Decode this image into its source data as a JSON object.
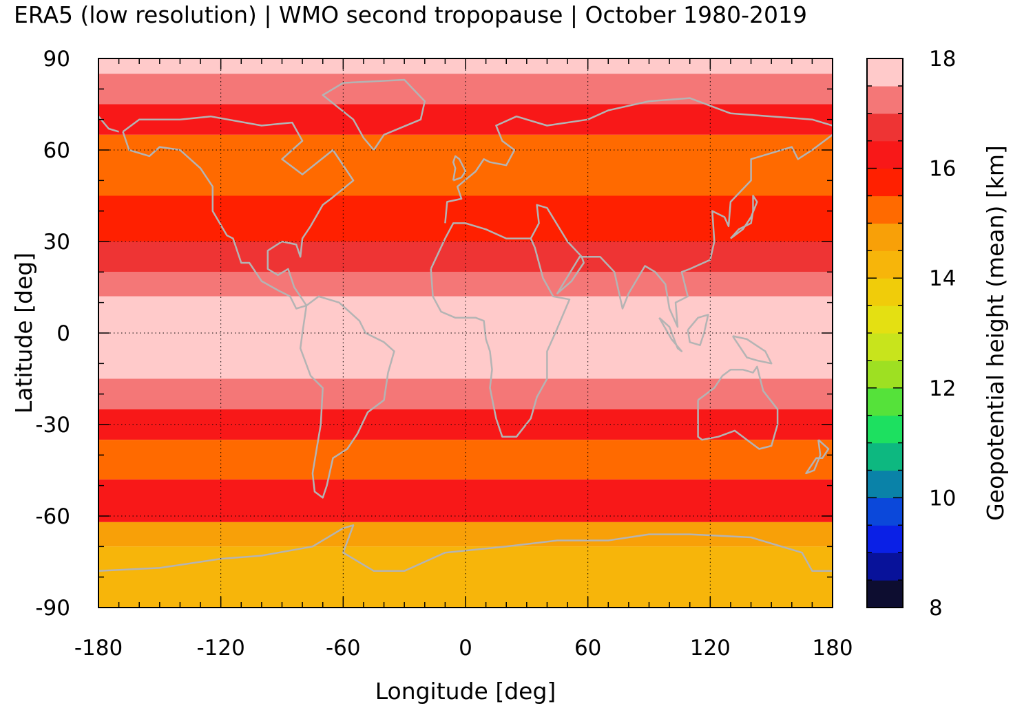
{
  "chart_data": {
    "type": "heatmap",
    "title": "ERA5 (low resolution) | WMO second tropopause | October 1980-2019",
    "xlabel": "Longitude [deg]",
    "ylabel": "Latitude [deg]",
    "colorbar_label": "Geopotential height (mean) [km]",
    "xlim": [
      -180,
      180
    ],
    "ylim": [
      -90,
      90
    ],
    "x_ticks": [
      "-180",
      "-120",
      "-60",
      "0",
      "60",
      "120",
      "180"
    ],
    "y_ticks": [
      "90",
      "60",
      "30",
      "0",
      "-30",
      "-60",
      "-90"
    ],
    "colorbar_range": [
      8,
      18
    ],
    "colorbar_ticks": [
      "18",
      "16",
      "14",
      "12",
      "10",
      "8"
    ],
    "colorbar_colors": [
      "#0d0d30",
      "#08129a",
      "#0a20e6",
      "#0b48da",
      "#0a82a8",
      "#0db880",
      "#1de060",
      "#55e23a",
      "#9ee022",
      "#c8e41c",
      "#e4e012",
      "#f0cc0a",
      "#f7b50a",
      "#f8a008",
      "#ff6a00",
      "#ff2000",
      "#f81818",
      "#ee3434",
      "#f47777",
      "#ffcaca"
    ],
    "grid": true,
    "coastlines": true,
    "approx_zonal_profile": [
      {
        "lat": [
          85,
          90
        ],
        "value": 17.6
      },
      {
        "lat": [
          75,
          85
        ],
        "value": 17.0
      },
      {
        "lat": [
          65,
          75
        ],
        "value": 16.4
      },
      {
        "lat": [
          45,
          65
        ],
        "value": 15.3
      },
      {
        "lat": [
          30,
          45
        ],
        "value": 15.9
      },
      {
        "lat": [
          20,
          30
        ],
        "value": 16.7
      },
      {
        "lat": [
          12,
          20
        ],
        "value": 17.1
      },
      {
        "lat": [
          -15,
          12
        ],
        "value": 17.6
      },
      {
        "lat": [
          -25,
          -15
        ],
        "value": 17.1
      },
      {
        "lat": [
          -35,
          -25
        ],
        "value": 16.4
      },
      {
        "lat": [
          -48,
          -35
        ],
        "value": 15.2
      },
      {
        "lat": [
          -62,
          -48
        ],
        "value": 16.1
      },
      {
        "lat": [
          -70,
          -62
        ],
        "value": 14.6
      },
      {
        "lat": [
          -90,
          -70
        ],
        "value": 14.0
      }
    ]
  }
}
